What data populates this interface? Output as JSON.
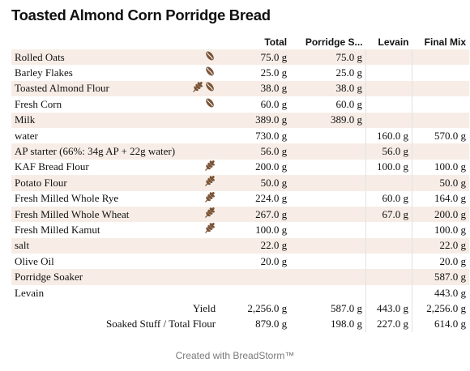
{
  "title": "Toasted Almond Corn Porridge Bread",
  "columns": [
    "Total",
    "Porridge S...",
    "Levain",
    "Final Mix"
  ],
  "ingredients": [
    {
      "name": "Rolled Oats",
      "icons": [
        "bean-icon"
      ],
      "total": "75.0 g",
      "porridge": "75.0 g",
      "levain": "",
      "final": ""
    },
    {
      "name": "Barley Flakes",
      "icons": [
        "bean-icon"
      ],
      "total": "25.0 g",
      "porridge": "25.0 g",
      "levain": "",
      "final": ""
    },
    {
      "name": "Toasted Almond Flour",
      "icons": [
        "wheat-icon",
        "bean-icon"
      ],
      "total": "38.0 g",
      "porridge": "38.0 g",
      "levain": "",
      "final": ""
    },
    {
      "name": "Fresh Corn",
      "icons": [
        "bean-icon"
      ],
      "total": "60.0 g",
      "porridge": "60.0 g",
      "levain": "",
      "final": ""
    },
    {
      "name": "Milk",
      "icons": [],
      "total": "389.0 g",
      "porridge": "389.0 g",
      "levain": "",
      "final": ""
    },
    {
      "name": "water",
      "icons": [],
      "total": "730.0 g",
      "porridge": "",
      "levain": "160.0 g",
      "final": "570.0 g"
    },
    {
      "name": "AP starter (66%: 34g AP + 22g water)",
      "icons": [],
      "total": "56.0 g",
      "porridge": "",
      "levain": "56.0 g",
      "final": ""
    },
    {
      "name": "KAF Bread Flour",
      "icons": [
        "wheat-icon"
      ],
      "total": "200.0 g",
      "porridge": "",
      "levain": "100.0 g",
      "final": "100.0 g"
    },
    {
      "name": "Potato Flour",
      "icons": [
        "wheat-icon"
      ],
      "total": "50.0 g",
      "porridge": "",
      "levain": "",
      "final": "50.0 g"
    },
    {
      "name": "Fresh Milled Whole Rye",
      "icons": [
        "wheat-icon"
      ],
      "total": "224.0 g",
      "porridge": "",
      "levain": "60.0 g",
      "final": "164.0 g"
    },
    {
      "name": "Fresh Milled Whole Wheat",
      "icons": [
        "wheat-icon"
      ],
      "total": "267.0 g",
      "porridge": "",
      "levain": "67.0 g",
      "final": "200.0 g"
    },
    {
      "name": "Fresh Milled Kamut",
      "icons": [
        "wheat-icon"
      ],
      "total": "100.0 g",
      "porridge": "",
      "levain": "",
      "final": "100.0 g"
    },
    {
      "name": "salt",
      "icons": [],
      "total": "22.0 g",
      "porridge": "",
      "levain": "",
      "final": "22.0 g"
    },
    {
      "name": "Olive Oil",
      "icons": [],
      "total": "20.0 g",
      "porridge": "",
      "levain": "",
      "final": "20.0 g"
    },
    {
      "name": "Porridge Soaker",
      "icons": [],
      "total": "",
      "porridge": "",
      "levain": "",
      "final": "587.0 g"
    },
    {
      "name": "Levain",
      "icons": [],
      "total": "",
      "porridge": "",
      "levain": "",
      "final": "443.0 g"
    }
  ],
  "summary": [
    {
      "label": "Yield",
      "total": "2,256.0 g",
      "porridge": "587.0 g",
      "levain": "443.0 g",
      "final": "2,256.0 g"
    },
    {
      "label": "Soaked Stuff / Total Flour",
      "total": "879.0 g",
      "porridge": "198.0 g",
      "levain": "227.0 g",
      "final": "614.0 g"
    }
  ],
  "footer": "Created with BreadStorm™",
  "colors": {
    "stripe": "#f7ede6",
    "icon": "#7a5438"
  }
}
